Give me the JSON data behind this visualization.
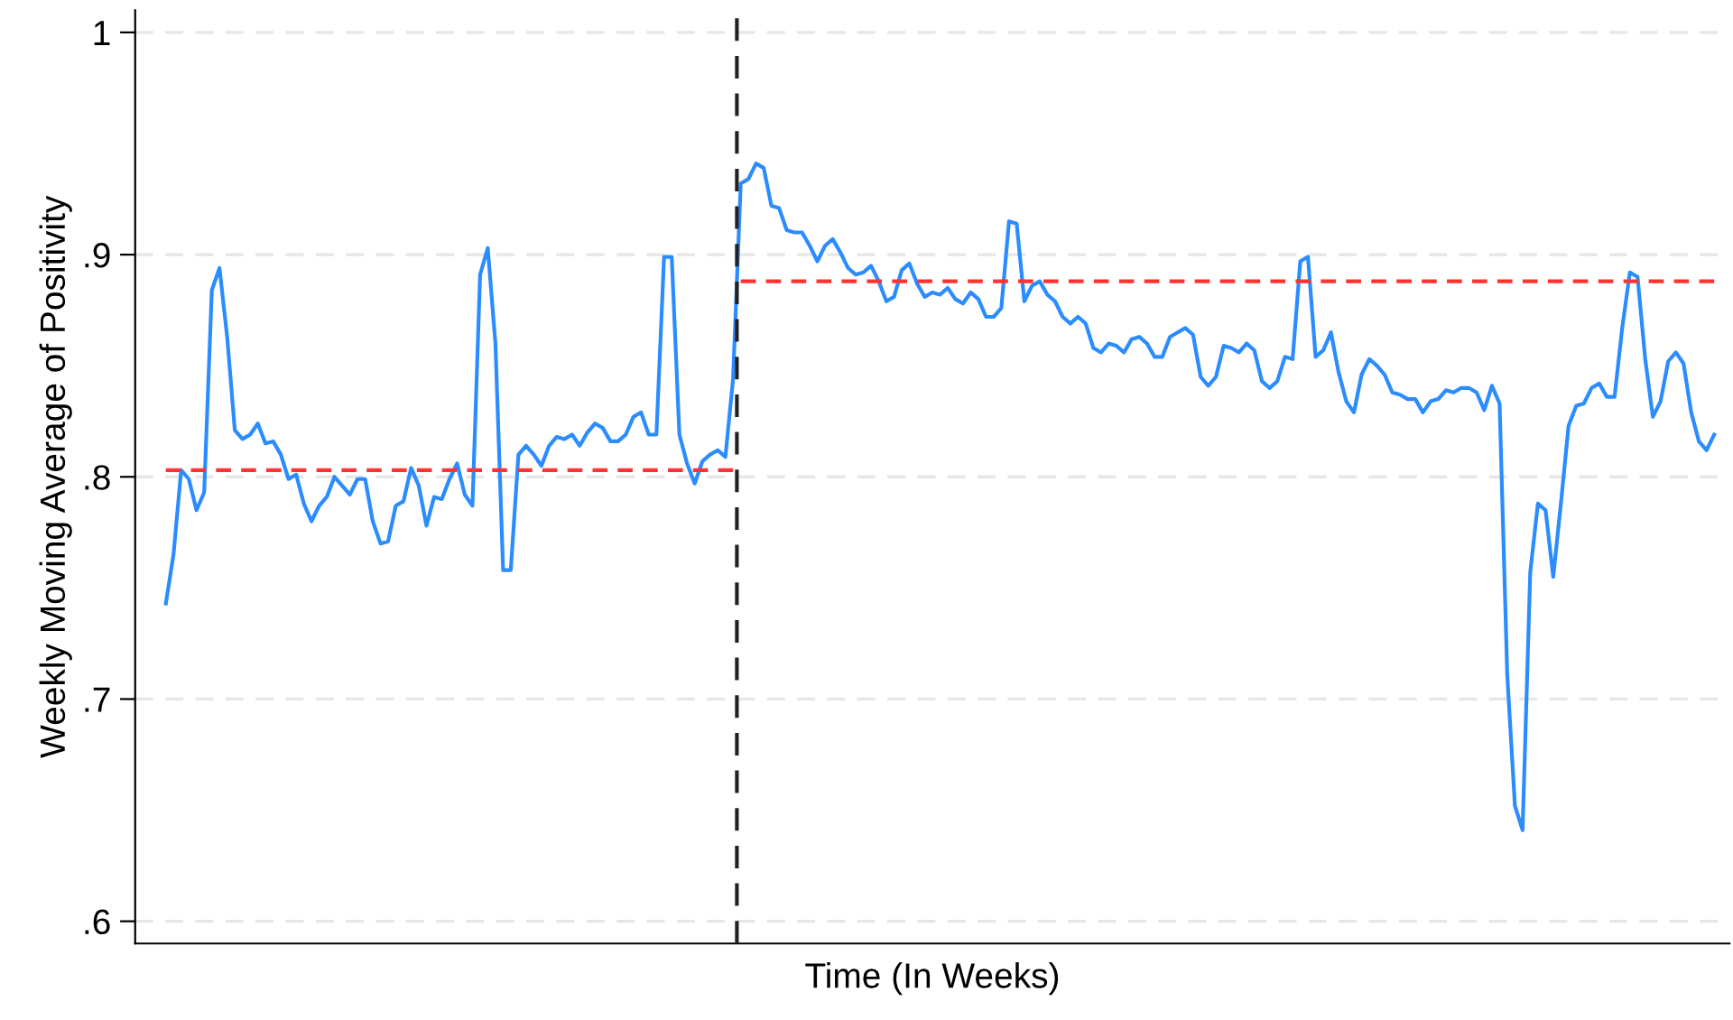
{
  "chart_data": {
    "type": "line",
    "xlabel": "Time (In Weeks)",
    "ylabel": "Weekly Moving Average of Positivity",
    "categories": [
      null,
      null,
      null,
      null,
      null,
      null,
      null,
      null,
      null,
      null,
      null,
      null,
      null,
      null,
      null,
      null,
      null,
      null,
      null,
      null,
      null,
      null,
      null,
      null,
      null,
      null,
      null,
      null,
      null,
      null,
      null,
      null,
      null,
      null,
      null,
      null,
      null,
      null,
      null,
      null,
      null,
      null,
      null,
      null,
      null,
      null,
      null,
      null,
      null,
      null,
      null,
      null,
      null,
      null,
      null,
      null,
      null,
      null,
      null,
      null,
      null,
      null,
      null,
      null,
      null,
      null,
      null,
      null,
      null,
      null,
      null,
      null,
      null,
      null,
      null,
      null,
      null,
      null,
      null,
      null,
      null,
      null,
      null,
      null,
      null,
      null,
      null,
      null,
      null,
      null,
      null,
      null,
      null,
      null,
      null,
      null,
      null,
      null,
      null,
      null,
      null,
      null,
      null,
      null,
      null,
      null,
      null,
      null,
      null,
      null,
      null,
      null,
      null,
      null,
      null,
      null,
      null,
      null,
      null,
      null,
      null,
      null,
      null,
      null,
      null,
      null,
      null,
      null,
      null,
      null,
      null,
      null,
      null,
      null,
      null,
      null,
      null,
      null,
      null,
      null,
      null,
      null,
      null,
      null,
      null,
      null,
      null,
      null,
      null,
      null,
      null,
      null,
      null,
      null,
      null,
      null,
      null,
      null,
      null,
      null,
      null,
      null,
      null,
      null,
      null,
      null,
      null,
      null,
      null,
      null,
      null,
      null,
      null,
      null,
      null,
      null,
      null,
      null,
      null,
      null,
      null,
      null,
      null,
      null,
      null,
      null,
      null,
      null,
      null,
      null,
      null,
      null,
      null,
      null,
      null,
      null,
      null,
      null,
      null,
      null,
      null,
      null,
      null
    ],
    "ylim": [
      0.59,
      1.01
    ],
    "yticks": [
      {
        "value": 0.6,
        "label": ".6"
      },
      {
        "value": 0.7,
        "label": ".7"
      },
      {
        "value": 0.8,
        "label": ".8"
      },
      {
        "value": 0.9,
        "label": ".9"
      },
      {
        "value": 1,
        "label": "1"
      }
    ],
    "tick_labels": "y",
    "grid": "y",
    "marker": "none",
    "series": [
      {
        "color": "#2a8cff",
        "line_style": "solid",
        "values": [
          0.743,
          0.765,
          0.803,
          0.799,
          0.785,
          0.793,
          0.884,
          0.894,
          0.863,
          0.821,
          0.817,
          0.819,
          0.824,
          0.815,
          0.816,
          0.81,
          0.799,
          0.801,
          0.788,
          0.78,
          0.787,
          0.791,
          0.8,
          0.796,
          0.792,
          0.799,
          0.799,
          0.78,
          0.77,
          0.771,
          0.787,
          0.789,
          0.804,
          0.796,
          0.778,
          0.791,
          0.79,
          0.799,
          0.806,
          0.792,
          0.787,
          0.891,
          0.903,
          0.86,
          0.758,
          0.758,
          0.81,
          0.814,
          0.81,
          0.805,
          0.814,
          0.818,
          0.817,
          0.819,
          0.814,
          0.82,
          0.824,
          0.822,
          0.816,
          0.816,
          0.819,
          0.827,
          0.829,
          0.819,
          0.819,
          0.899,
          0.899,
          0.819,
          0.806,
          0.797,
          0.807,
          0.81,
          0.812,
          0.809,
          0.844,
          0.932,
          0.934,
          0.941,
          0.939,
          0.922,
          0.921,
          0.911,
          0.91,
          0.91,
          0.904,
          0.897,
          0.904,
          0.907,
          0.901,
          0.894,
          0.891,
          0.892,
          0.895,
          0.888,
          0.879,
          0.881,
          0.893,
          0.896,
          0.887,
          0.881,
          0.883,
          0.882,
          0.885,
          0.88,
          0.878,
          0.883,
          0.88,
          0.872,
          0.872,
          0.876,
          0.915,
          0.914,
          0.879,
          0.886,
          0.888,
          0.882,
          0.879,
          0.872,
          0.869,
          0.872,
          0.869,
          0.858,
          0.856,
          0.86,
          0.859,
          0.856,
          0.862,
          0.863,
          0.86,
          0.854,
          0.854,
          0.863,
          0.865,
          0.867,
          0.864,
          0.845,
          0.841,
          0.845,
          0.859,
          0.858,
          0.856,
          0.86,
          0.857,
          0.843,
          0.84,
          0.843,
          0.854,
          0.853,
          0.897,
          0.899,
          0.854,
          0.857,
          0.865,
          0.847,
          0.834,
          0.829,
          0.846,
          0.853,
          0.85,
          0.846,
          0.838,
          0.837,
          0.835,
          0.835,
          0.829,
          0.834,
          0.835,
          0.839,
          0.838,
          0.84,
          0.84,
          0.838,
          0.83,
          0.841,
          0.833,
          0.711,
          0.652,
          0.641,
          0.757,
          0.788,
          0.785,
          0.755,
          0.788,
          0.823,
          0.832,
          0.833,
          0.84,
          0.842,
          0.836,
          0.836,
          0.867,
          0.892,
          0.89,
          0.853,
          0.827,
          0.834,
          0.852,
          0.856,
          0.851,
          0.829,
          0.816,
          0.812,
          0.819
        ]
      },
      {
        "color": "#ff3333",
        "line_style": "dashed",
        "values": [
          0.803,
          0.803,
          0.803,
          0.803,
          0.803,
          0.803,
          0.803,
          0.803,
          0.803,
          0.803,
          0.803,
          0.803,
          0.803,
          0.803,
          0.803,
          0.803,
          0.803,
          0.803,
          0.803,
          0.803,
          0.803,
          0.803,
          0.803,
          0.803,
          0.803,
          0.803,
          0.803,
          0.803,
          0.803,
          0.803,
          0.803,
          0.803,
          0.803,
          0.803,
          0.803,
          0.803,
          0.803,
          0.803,
          0.803,
          0.803,
          0.803,
          0.803,
          0.803,
          0.803,
          0.803,
          0.803,
          0.803,
          0.803,
          0.803,
          0.803,
          0.803,
          0.803,
          0.803,
          0.803,
          0.803,
          0.803,
          0.803,
          0.803,
          0.803,
          0.803,
          0.803,
          0.803,
          0.803,
          0.803,
          0.803,
          0.803,
          0.803,
          0.803,
          0.803,
          0.803,
          0.803,
          0.803,
          0.803,
          0.803,
          0.803,
          null,
          null,
          null,
          null,
          null,
          null,
          null,
          null,
          null,
          null,
          null,
          null,
          null,
          null,
          null,
          null,
          null,
          null,
          null,
          null,
          null,
          null,
          null,
          null,
          null,
          null,
          null,
          null,
          null,
          null,
          null,
          null,
          null,
          null,
          null,
          null,
          null,
          null,
          null,
          null,
          null,
          null,
          null,
          null,
          null,
          null,
          null,
          null,
          null,
          null,
          null,
          null,
          null,
          null,
          null,
          null,
          null,
          null,
          null,
          null,
          null,
          null,
          null,
          null,
          null,
          null,
          null,
          null,
          null,
          null,
          null,
          null,
          null,
          null,
          null,
          null,
          null,
          null,
          null,
          null,
          null,
          null,
          null,
          null,
          null,
          null,
          null,
          null,
          null,
          null,
          null,
          null,
          null,
          null,
          null,
          null,
          null,
          null,
          null,
          null,
          null,
          null,
          null,
          null,
          null,
          null,
          null,
          null,
          null,
          null,
          null,
          null,
          null,
          null,
          null,
          null,
          null,
          null,
          null,
          null,
          null,
          null,
          null,
          null,
          null,
          null,
          null,
          null
        ]
      },
      {
        "color": "#ff3333",
        "line_style": "dashed",
        "values": [
          null,
          null,
          null,
          null,
          null,
          null,
          null,
          null,
          null,
          null,
          null,
          null,
          null,
          null,
          null,
          null,
          null,
          null,
          null,
          null,
          null,
          null,
          null,
          null,
          null,
          null,
          null,
          null,
          null,
          null,
          null,
          null,
          null,
          null,
          null,
          null,
          null,
          null,
          null,
          null,
          null,
          null,
          null,
          null,
          null,
          null,
          null,
          null,
          null,
          null,
          null,
          null,
          null,
          null,
          null,
          null,
          null,
          null,
          null,
          null,
          null,
          null,
          null,
          null,
          null,
          null,
          null,
          null,
          null,
          null,
          null,
          null,
          null,
          null,
          null,
          0.888,
          0.888,
          0.888,
          0.888,
          0.888,
          0.888,
          0.888,
          0.888,
          0.888,
          0.888,
          0.888,
          0.888,
          0.888,
          0.888,
          0.888,
          0.888,
          0.888,
          0.888,
          0.888,
          0.888,
          0.888,
          0.888,
          0.888,
          0.888,
          0.888,
          0.888,
          0.888,
          0.888,
          0.888,
          0.888,
          0.888,
          0.888,
          0.888,
          0.888,
          0.888,
          0.888,
          0.888,
          0.888,
          0.888,
          0.888,
          0.888,
          0.888,
          0.888,
          0.888,
          0.888,
          0.888,
          0.888,
          0.888,
          0.888,
          0.888,
          0.888,
          0.888,
          0.888,
          0.888,
          0.888,
          0.888,
          0.888,
          0.888,
          0.888,
          0.888,
          0.888,
          0.888,
          0.888,
          0.888,
          0.888,
          0.888,
          0.888,
          0.888,
          0.888,
          0.888,
          0.888,
          0.888,
          0.888,
          0.888,
          0.888,
          0.888,
          0.888,
          0.888,
          0.888,
          0.888,
          0.888,
          0.888,
          0.888,
          0.888,
          0.888,
          0.888,
          0.888,
          0.888,
          0.888,
          0.888,
          0.888,
          0.888,
          0.888,
          0.888,
          0.888,
          0.888,
          0.888,
          0.888,
          0.888,
          0.888,
          0.888,
          0.888,
          0.888,
          0.888,
          0.888,
          0.888,
          0.888,
          0.888,
          0.888,
          0.888,
          0.888,
          0.888,
          0.888,
          0.888,
          0.888,
          0.888,
          0.888,
          0.888,
          0.888,
          0.888,
          0.888,
          0.888,
          0.888,
          0.888,
          0.888,
          0.888,
          0.888,
          0.888
        ]
      }
    ]
  }
}
